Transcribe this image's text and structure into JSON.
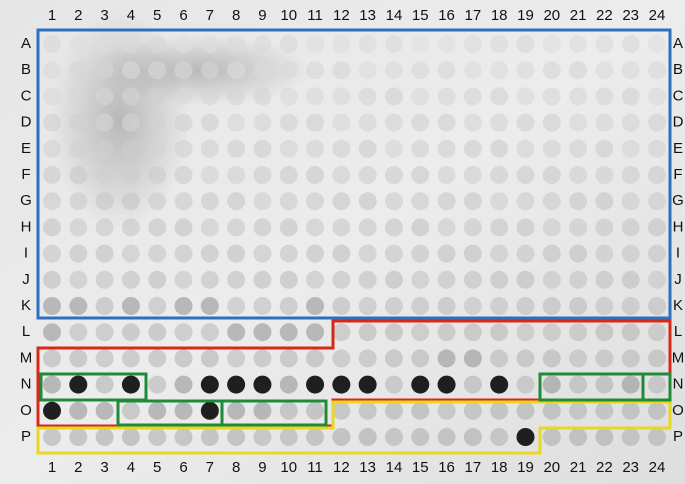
{
  "plate": {
    "columns": [
      "1",
      "2",
      "3",
      "4",
      "5",
      "6",
      "7",
      "8",
      "9",
      "10",
      "11",
      "12",
      "13",
      "14",
      "15",
      "16",
      "17",
      "18",
      "19",
      "20",
      "21",
      "22",
      "23",
      "24"
    ],
    "rows": [
      "A",
      "B",
      "C",
      "D",
      "E",
      "F",
      "G",
      "H",
      "I",
      "J",
      "K",
      "L",
      "M",
      "N",
      "O",
      "P"
    ]
  }
}
